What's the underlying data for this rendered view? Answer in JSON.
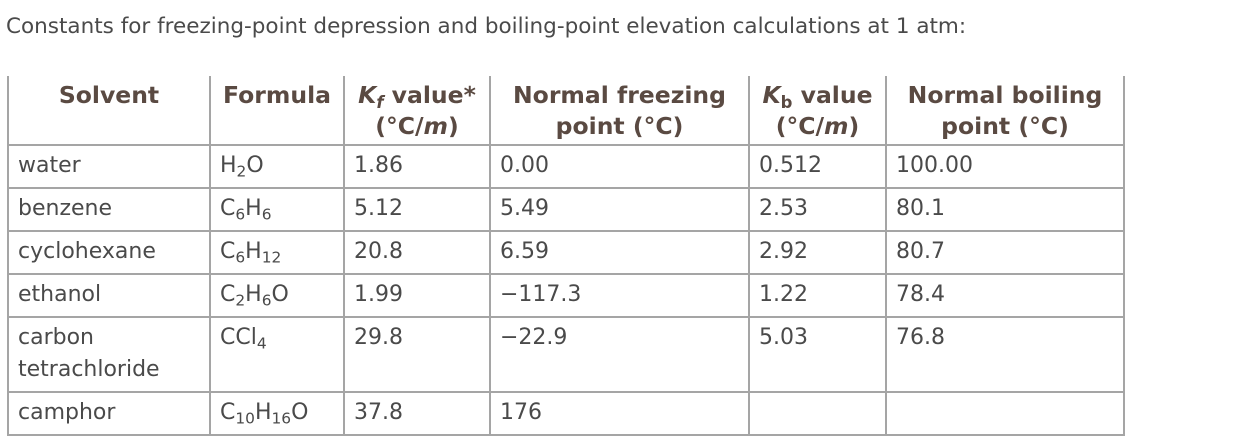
{
  "title": "Constants for freezing-point depression and boiling-point elevation calculations at 1 atm:",
  "table": {
    "header": [
      [
        [
          {
            "text": "Solvent"
          }
        ]
      ],
      [
        [
          {
            "text": "Formula"
          }
        ]
      ],
      [
        [
          {
            "text": "K",
            "style": "italic"
          },
          {
            "text": "f",
            "style": "sub-italic"
          },
          {
            "text": " value*"
          }
        ],
        [
          {
            "text": "(°C/"
          },
          {
            "text": "m",
            "style": "italic"
          },
          {
            "text": ")"
          }
        ]
      ],
      [
        [
          {
            "text": "Normal freezing"
          }
        ],
        [
          {
            "text": "point (°C)"
          }
        ]
      ],
      [
        [
          {
            "text": "K",
            "style": "italic"
          },
          {
            "text": "b",
            "style": "sub"
          },
          {
            "text": " value"
          }
        ],
        [
          {
            "text": "(°C/"
          },
          {
            "text": "m",
            "style": "italic"
          },
          {
            "text": ")"
          }
        ]
      ],
      [
        [
          {
            "text": "Normal boiling"
          }
        ],
        [
          {
            "text": "point (°C)"
          }
        ]
      ]
    ],
    "rows": [
      [
        "water",
        [
          {
            "text": "H"
          },
          {
            "text": "2",
            "style": "sub"
          },
          {
            "text": "O"
          }
        ],
        "1.86",
        "0.00",
        "0.512",
        "100.00"
      ],
      [
        "benzene",
        [
          {
            "text": "C"
          },
          {
            "text": "6",
            "style": "sub"
          },
          {
            "text": "H"
          },
          {
            "text": "6",
            "style": "sub"
          }
        ],
        "5.12",
        "5.49",
        "2.53",
        "80.1"
      ],
      [
        "cyclohexane",
        [
          {
            "text": "C"
          },
          {
            "text": "6",
            "style": "sub"
          },
          {
            "text": "H"
          },
          {
            "text": "12",
            "style": "sub"
          }
        ],
        "20.8",
        "6.59",
        "2.92",
        "80.7"
      ],
      [
        "ethanol",
        [
          {
            "text": "C"
          },
          {
            "text": "2",
            "style": "sub"
          },
          {
            "text": "H"
          },
          {
            "text": "6",
            "style": "sub"
          },
          {
            "text": "O"
          }
        ],
        "1.99",
        "−117.3",
        "1.22",
        "78.4"
      ],
      [
        "carbon tetrachloride",
        [
          {
            "text": "CCl"
          },
          {
            "text": "4",
            "style": "sub"
          }
        ],
        "29.8",
        "−22.9",
        "5.03",
        "76.8"
      ],
      [
        "camphor",
        [
          {
            "text": "C"
          },
          {
            "text": "10",
            "style": "sub"
          },
          {
            "text": "H"
          },
          {
            "text": "16",
            "style": "sub"
          },
          {
            "text": "O"
          }
        ],
        "37.8",
        "176",
        null,
        null
      ]
    ]
  }
}
